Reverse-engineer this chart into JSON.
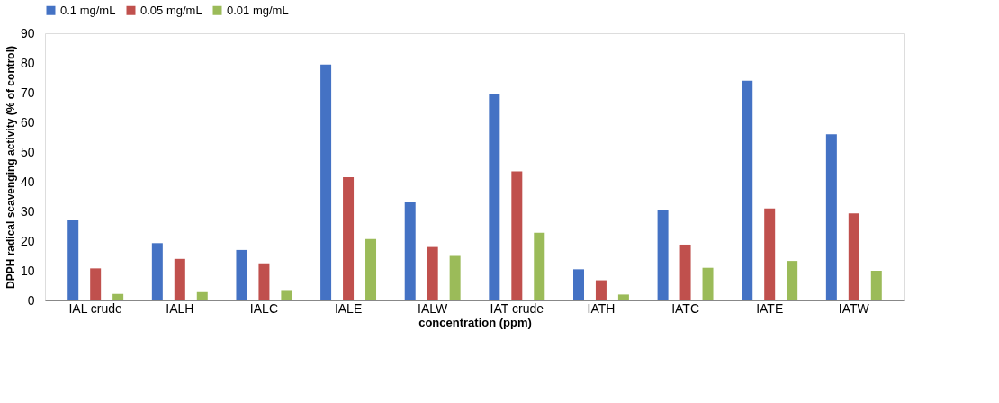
{
  "chart_data": {
    "type": "bar",
    "xlabel": "concentration (ppm)",
    "ylabel": "DPPH radical scavenging activity (% of control)",
    "categories": [
      "IAL crude",
      "IALH",
      "IALC",
      "IALE",
      "IALW",
      "IAT crude",
      "IATH",
      "IATC",
      "IATE",
      "IATW"
    ],
    "series": [
      {
        "name": "0.1 mg/mL",
        "color": "#4472c4",
        "values": [
          27,
          19.3,
          17,
          79.5,
          33,
          69.5,
          10.5,
          30.3,
          74,
          56
        ]
      },
      {
        "name": "0.05 mg/mL",
        "color": "#c0504d",
        "values": [
          10.8,
          14,
          12.5,
          41.5,
          18,
          43.5,
          6.8,
          18.8,
          31,
          29.3
        ]
      },
      {
        "name": "0.01 mg/mL",
        "color": "#9bbb59",
        "values": [
          2.2,
          2.8,
          3.5,
          20.7,
          15,
          22.8,
          2,
          11,
          13.3,
          10
        ]
      }
    ],
    "ylim": [
      0,
      90
    ],
    "yticks": [
      0,
      10,
      20,
      30,
      40,
      50,
      60,
      70,
      80,
      90
    ],
    "grid": false,
    "legend": "top"
  }
}
